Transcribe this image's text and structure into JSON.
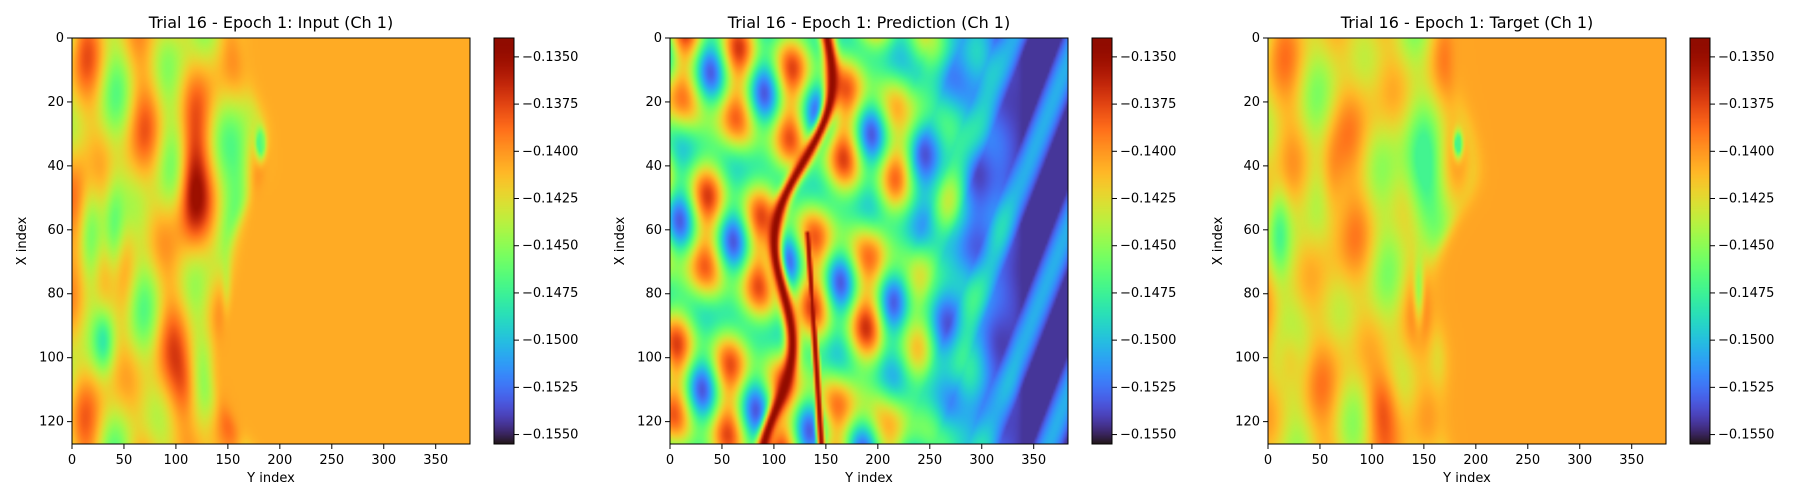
{
  "chart_data": [
    {
      "type": "heatmap",
      "title": "Trial 16 - Epoch 1: Input (Ch 1)",
      "xlabel": "Y index",
      "ylabel": "X index",
      "xlim": [
        0,
        383
      ],
      "ylim": [
        127,
        0
      ],
      "xticks": [
        0,
        50,
        100,
        150,
        200,
        250,
        300,
        350
      ],
      "yticks": [
        0,
        20,
        40,
        60,
        80,
        100,
        120
      ],
      "colormap": "turbo",
      "colorbar": {
        "vmin": -0.1555,
        "vmax": -0.134,
        "ticks": [
          "−0.1550",
          "−0.1525",
          "−0.1500",
          "−0.1475",
          "−0.1450",
          "−0.1425",
          "−0.1400",
          "−0.1375",
          "−0.1350"
        ]
      },
      "pattern": "input"
    },
    {
      "type": "heatmap",
      "title": "Trial 16 - Epoch 1: Prediction (Ch 1)",
      "xlabel": "Y index",
      "ylabel": "X index",
      "xlim": [
        0,
        383
      ],
      "ylim": [
        127,
        0
      ],
      "xticks": [
        0,
        50,
        100,
        150,
        200,
        250,
        300,
        350
      ],
      "yticks": [
        0,
        20,
        40,
        60,
        80,
        100,
        120
      ],
      "colormap": "turbo",
      "colorbar": {
        "vmin": -0.1555,
        "vmax": -0.134,
        "ticks": [
          "−0.1550",
          "−0.1525",
          "−0.1500",
          "−0.1475",
          "−0.1450",
          "−0.1425",
          "−0.1400",
          "−0.1375",
          "−0.1350"
        ]
      },
      "pattern": "prediction"
    },
    {
      "type": "heatmap",
      "title": "Trial 16 - Epoch 1: Target (Ch 1)",
      "xlabel": "Y index",
      "ylabel": "X index",
      "xlim": [
        0,
        383
      ],
      "ylim": [
        127,
        0
      ],
      "xticks": [
        0,
        50,
        100,
        150,
        200,
        250,
        300,
        350
      ],
      "yticks": [
        0,
        20,
        40,
        60,
        80,
        100,
        120
      ],
      "colormap": "turbo",
      "colorbar": {
        "vmin": -0.1555,
        "vmax": -0.134,
        "ticks": [
          "−0.1550",
          "−0.1525",
          "−0.1500",
          "−0.1475",
          "−0.1450",
          "−0.1425",
          "−0.1400",
          "−0.1375",
          "−0.1350"
        ]
      },
      "pattern": "target"
    }
  ]
}
